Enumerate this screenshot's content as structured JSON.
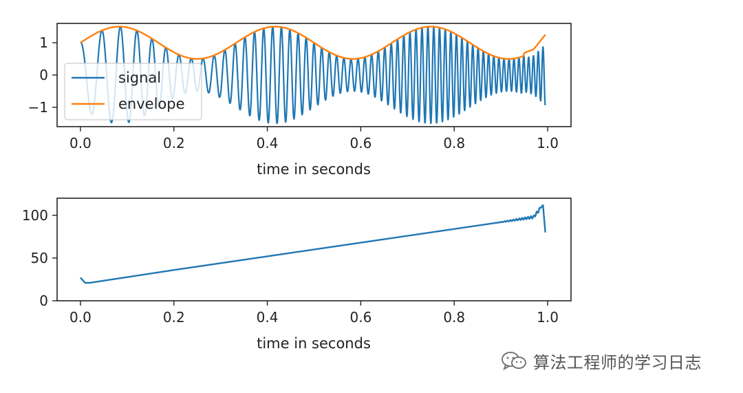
{
  "chart_data": [
    {
      "type": "line",
      "xlabel": "time in seconds",
      "ylabel": "",
      "xlim": [
        -0.05,
        1.05
      ],
      "ylim": [
        -1.6,
        1.6
      ],
      "xticks": [
        "0.0",
        "0.2",
        "0.4",
        "0.6",
        "0.8",
        "1.0"
      ],
      "yticks": [
        "1",
        "0",
        "−1"
      ],
      "legend_position": "lower-left",
      "grid": false,
      "series": [
        {
          "name": "signal",
          "color": "#1f77b4",
          "description_of_form": "amplitude-modulated chirp: amplitude = envelope, frequency rises from ~20 Hz to ~100 Hz",
          "x_start": 0.0,
          "x_end": 0.995,
          "samples": [
            [
              0.0,
              1.0
            ],
            [
              0.05,
              -1.3
            ],
            [
              0.1,
              1.45
            ],
            [
              0.2,
              0.7
            ],
            [
              0.25,
              -0.5
            ],
            [
              0.42,
              1.5
            ],
            [
              0.42,
              -1.5
            ],
            [
              0.6,
              0.5
            ],
            [
              0.75,
              1.45
            ],
            [
              0.75,
              -1.4
            ],
            [
              0.92,
              0.5
            ],
            [
              0.995,
              0.6
            ]
          ]
        },
        {
          "name": "envelope",
          "color": "#ff7f0e",
          "x": [
            0.0,
            0.083,
            0.25,
            0.417,
            0.583,
            0.75,
            0.917,
            0.97,
            0.995
          ],
          "y": [
            1.0,
            1.5,
            0.5,
            1.5,
            0.5,
            1.5,
            0.5,
            0.8,
            1.25
          ]
        }
      ]
    },
    {
      "type": "line",
      "xlabel": "time in seconds",
      "ylabel": "",
      "xlim": [
        -0.05,
        1.05
      ],
      "ylim": [
        0,
        120
      ],
      "xticks": [
        "0.0",
        "0.2",
        "0.4",
        "0.6",
        "0.8",
        "1.0"
      ],
      "yticks": [
        "100",
        "50",
        "0"
      ],
      "grid": false,
      "series": [
        {
          "color": "#1f77b4",
          "x": [
            0.0,
            0.01,
            0.02,
            0.2,
            0.4,
            0.6,
            0.8,
            0.9,
            0.97,
            0.99,
            0.995
          ],
          "y": [
            27,
            21,
            21,
            36,
            52,
            68,
            84,
            92,
            98,
            112,
            80
          ]
        }
      ]
    }
  ],
  "watermark": {
    "icon": "wechat-icon",
    "text": "算法工程师的学习日志"
  }
}
